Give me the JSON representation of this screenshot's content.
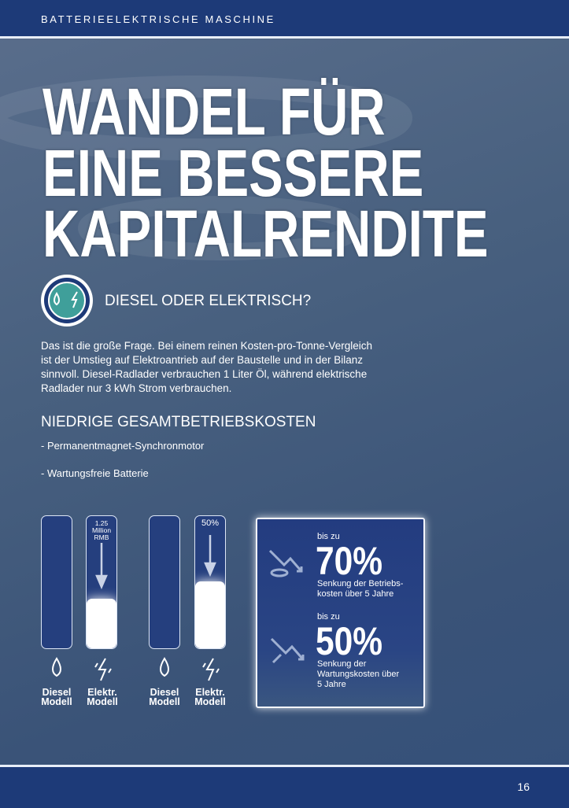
{
  "header": {
    "section": "BATTERIEELEKTRISCHE MASCHINE"
  },
  "title": [
    "WANDEL FÜR",
    "EINE BESSERE",
    "KAPITALRENDITE"
  ],
  "question": "DIESEL ODER ELEKTRISCH?",
  "intro": [
    "Das ist die große Frage. Bei einem reinen Kosten-pro-Tonne-Vergleich",
    "ist der Umstieg auf Elektroantrieb auf der Baustelle und in der Bilanz",
    "sinnvoll. Diesel-Radlader verbrauchen 1 Liter Öl, während elektrische",
    "Radlader nur 3 kWh Strom verbrauchen."
  ],
  "subheading": "NIEDRIGE GESAMTBETRIEBSKOSTEN",
  "bullets": [
    "- Permanentmagnet-Synchronmotor",
    "- Wartungsfreie Batterie"
  ],
  "comparisons": [
    {
      "label": [
        "1.25",
        "Million",
        "RMB"
      ],
      "diesel": [
        "Diesel",
        "Modell"
      ],
      "electric": [
        "Elektr.",
        "Modell"
      ]
    },
    {
      "label": [
        "50%"
      ],
      "diesel": [
        "Diesel",
        "Modell"
      ],
      "electric": [
        "Elektr.",
        "Modell"
      ]
    }
  ],
  "stats": [
    {
      "prefix": "bis zu",
      "value": "70%",
      "caption": [
        "Senkung der Betriebs-",
        "kosten über 5 Jahre"
      ]
    },
    {
      "prefix": "bis zu",
      "value": "50%",
      "caption": [
        "Senkung der",
        "Wartungskosten über",
        "5 Jahre"
      ]
    }
  ],
  "footer": {
    "page": "16"
  }
}
